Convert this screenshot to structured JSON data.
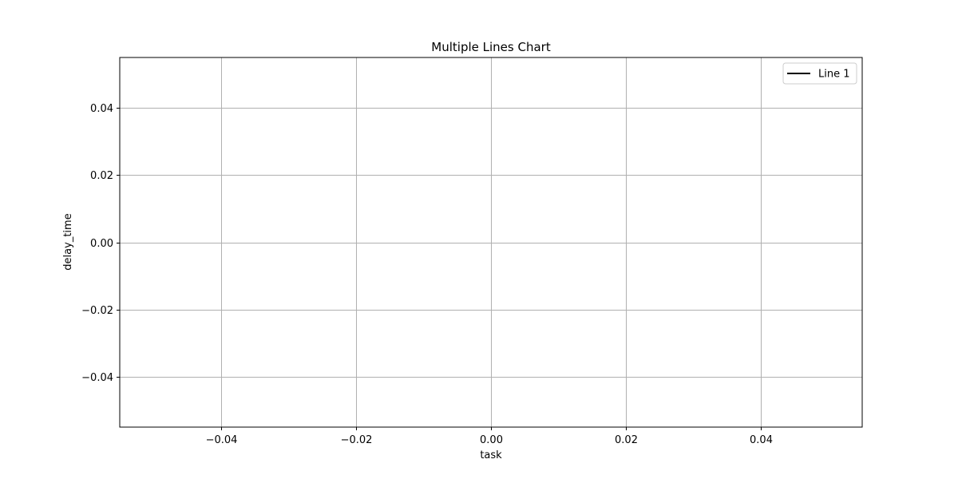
{
  "chart_data": {
    "type": "line",
    "title": "Multiple Lines Chart",
    "xlabel": "task",
    "ylabel": "delay_time",
    "xlim": [
      -0.055,
      0.055
    ],
    "ylim": [
      -0.055,
      0.055
    ],
    "x_ticks": [
      -0.04,
      -0.02,
      0.0,
      0.02,
      0.04
    ],
    "y_ticks": [
      -0.04,
      -0.02,
      0.0,
      0.02,
      0.04
    ],
    "x_tick_labels": [
      "−0.04",
      "−0.02",
      "0.00",
      "0.02",
      "0.04"
    ],
    "y_tick_labels": [
      "−0.04",
      "−0.02",
      "0.00",
      "0.02",
      "0.04"
    ],
    "grid": true,
    "legend_position": "top-right",
    "series": [
      {
        "name": "Line 1",
        "color": "#000000",
        "x": [],
        "y": []
      }
    ]
  }
}
